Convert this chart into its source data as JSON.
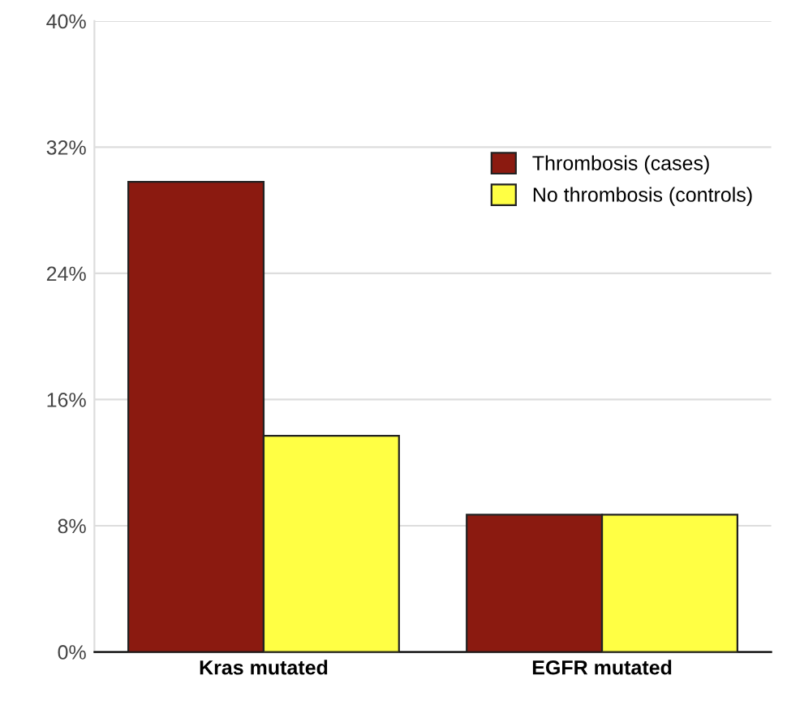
{
  "chart_data": {
    "type": "bar",
    "categories": [
      "Kras mutated",
      "EGFR mutated"
    ],
    "series": [
      {
        "name": "Thrombosis (cases)",
        "color": "#8b1a10",
        "values": [
          29.8,
          8.7
        ]
      },
      {
        "name": "No thrombosis (controls)",
        "color": "#ffff44",
        "values": [
          13.7,
          8.7
        ]
      }
    ],
    "ylim": [
      0,
      40
    ],
    "yticks": [
      {
        "value": 0,
        "label": "0%"
      },
      {
        "value": 8,
        "label": "8%"
      },
      {
        "value": 16,
        "label": "16%"
      },
      {
        "value": 24,
        "label": "24%"
      },
      {
        "value": 32,
        "label": "32%"
      },
      {
        "value": 40,
        "label": "40%"
      }
    ],
    "grid": "y",
    "legend": "top right"
  }
}
